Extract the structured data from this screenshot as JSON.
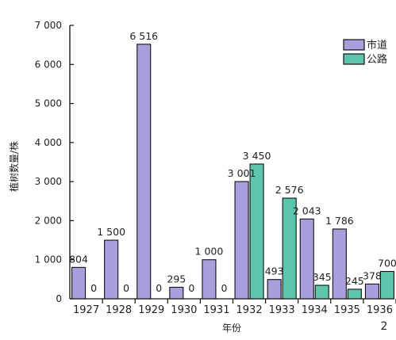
{
  "chart_data": {
    "type": "bar",
    "categories": [
      "1927",
      "1928",
      "1929",
      "1930",
      "1931",
      "1932",
      "1933",
      "1934",
      "1935",
      "1936"
    ],
    "series": [
      {
        "name": "市道",
        "color": "#a99fdc",
        "values": [
          804,
          1500,
          6516,
          295,
          1000,
          3001,
          493,
          2043,
          1786,
          378
        ],
        "labels": [
          "804",
          "1 500",
          "6 516",
          "295",
          "1 000",
          "3 001",
          "493",
          "2 043",
          "1 786",
          "378"
        ]
      },
      {
        "name": "公路",
        "color": "#5ec5ad",
        "values": [
          0,
          0,
          0,
          0,
          0,
          3450,
          2576,
          345,
          245,
          700
        ],
        "labels": [
          "0",
          "0",
          "0",
          "0",
          "0",
          "3 450",
          "2 576",
          "345",
          "245",
          "700"
        ]
      }
    ],
    "xlabel": "年份",
    "ylabel": "植树数量/株",
    "ylim": [
      0,
      7000
    ],
    "yticks": [
      0,
      1000,
      2000,
      3000,
      4000,
      5000,
      6000,
      7000
    ],
    "ytick_labels": [
      "0",
      "1 000",
      "2 000",
      "3 000",
      "4 000",
      "5 000",
      "6 000",
      "7 000"
    ],
    "legend_position": "top-right",
    "grid": false,
    "corner_note": "2"
  }
}
